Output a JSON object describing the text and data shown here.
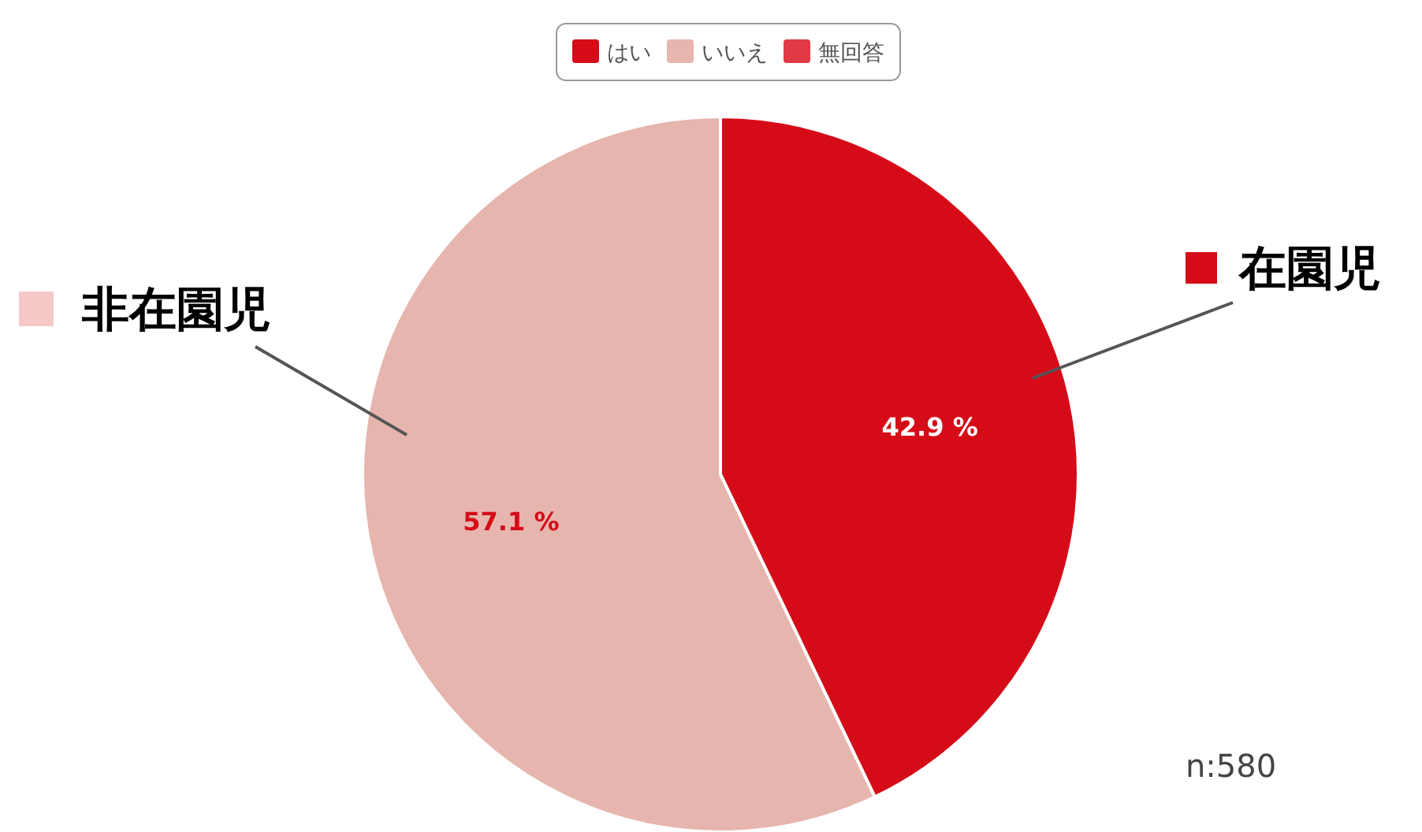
{
  "chart_data": {
    "type": "pie",
    "categories": [
      "はい",
      "いいえ",
      "無回答"
    ],
    "values": [
      42.9,
      57.1,
      0
    ],
    "colors": [
      "#d50c18",
      "#e6b5ad",
      "#e03a45"
    ],
    "value_labels": [
      "42.9 %",
      "57.1 %",
      null
    ],
    "legend": "top",
    "annotations": [
      "在園児",
      "非在園児",
      "n:580"
    ]
  }
}
